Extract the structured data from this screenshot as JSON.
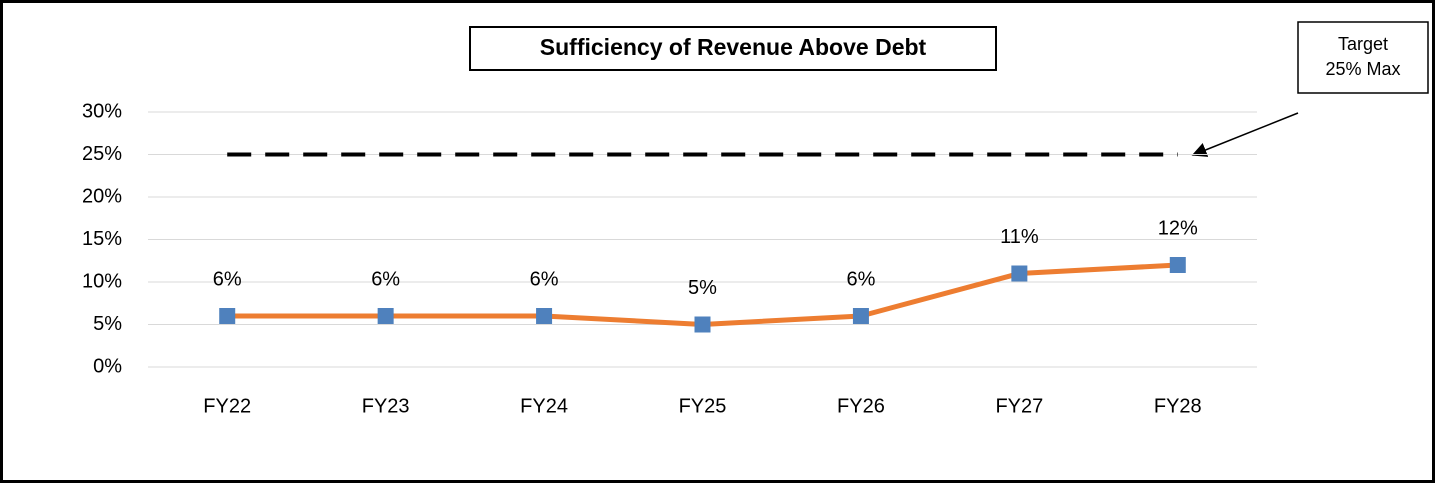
{
  "chart_data": {
    "type": "line",
    "title": "Sufficiency of Revenue Above Debt",
    "categories": [
      "FY22",
      "FY23",
      "FY24",
      "FY25",
      "FY26",
      "FY27",
      "FY28"
    ],
    "series": [
      {
        "color": "#ed7d31",
        "marker_color": "#4f81bd",
        "values": [
          6,
          6,
          6,
          5,
          6,
          11,
          12
        ],
        "value_labels": [
          "6%",
          "6%",
          "6%",
          "5%",
          "6%",
          "11%",
          "12%"
        ]
      },
      {
        "color": "#000000",
        "dashed": true,
        "values": [
          25,
          25,
          25,
          25,
          25,
          25,
          25
        ]
      }
    ],
    "annotation": [
      "Target",
      "25% Max"
    ],
    "ylim": [
      0,
      30
    ],
    "yticks": [
      {
        "value": 0,
        "label": "0%"
      },
      {
        "value": 5,
        "label": "5%"
      },
      {
        "value": 10,
        "label": "10%"
      },
      {
        "value": 15,
        "label": "15%"
      },
      {
        "value": 20,
        "label": "20%"
      },
      {
        "value": 25,
        "label": "25%"
      },
      {
        "value": 30,
        "label": "30%"
      }
    ],
    "grid": true
  }
}
